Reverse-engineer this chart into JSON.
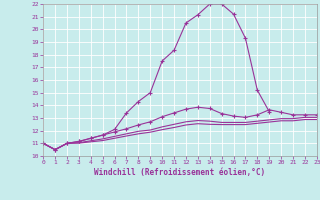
{
  "background_color": "#c8ecec",
  "grid_color": "#ffffff",
  "line_color": "#993399",
  "xlabel": "Windchill (Refroidissement éolien,°C)",
  "xmin": 0,
  "xmax": 23,
  "ymin": 10,
  "ymax": 22,
  "yticks": [
    10,
    11,
    12,
    13,
    14,
    15,
    16,
    17,
    18,
    19,
    20,
    21,
    22
  ],
  "xticks": [
    0,
    1,
    2,
    3,
    4,
    5,
    6,
    7,
    8,
    9,
    10,
    11,
    12,
    13,
    14,
    15,
    16,
    17,
    18,
    19,
    20,
    21,
    22,
    23
  ],
  "curves": [
    {
      "x": [
        0,
        1,
        2,
        3,
        4,
        5,
        6,
        7,
        8,
        9,
        10,
        11,
        12,
        13,
        14,
        15,
        16,
        17,
        18,
        19
      ],
      "y": [
        11.0,
        10.5,
        11.0,
        11.15,
        11.4,
        11.65,
        12.1,
        13.4,
        14.3,
        15.0,
        17.5,
        18.35,
        20.5,
        21.15,
        22.0,
        22.0,
        21.2,
        19.3,
        15.2,
        13.5
      ],
      "marker": true
    },
    {
      "x": [
        0,
        1,
        2,
        3,
        4,
        5,
        6,
        7,
        8,
        9,
        10,
        11,
        12,
        13,
        14,
        15,
        16,
        17,
        18,
        19,
        20,
        21,
        22,
        23
      ],
      "y": [
        11.0,
        10.5,
        11.0,
        11.15,
        11.4,
        11.65,
        11.9,
        12.15,
        12.45,
        12.7,
        13.1,
        13.4,
        13.7,
        13.85,
        13.75,
        13.35,
        13.15,
        13.05,
        13.25,
        13.65,
        13.45,
        13.25,
        13.25,
        13.25
      ],
      "marker": true
    },
    {
      "x": [
        0,
        1,
        2,
        3,
        4,
        5,
        6,
        7,
        8,
        9,
        10,
        11,
        12,
        13,
        14,
        15,
        16,
        17,
        18,
        19,
        20,
        21,
        22,
        23
      ],
      "y": [
        11.0,
        10.5,
        11.0,
        11.05,
        11.2,
        11.35,
        11.55,
        11.75,
        11.95,
        12.05,
        12.3,
        12.5,
        12.7,
        12.8,
        12.75,
        12.65,
        12.65,
        12.65,
        12.75,
        12.85,
        12.95,
        12.95,
        13.05,
        13.05
      ],
      "marker": false
    },
    {
      "x": [
        0,
        1,
        2,
        3,
        4,
        5,
        6,
        7,
        8,
        9,
        10,
        11,
        12,
        13,
        14,
        15,
        16,
        17,
        18,
        19,
        20,
        21,
        22,
        23
      ],
      "y": [
        11.0,
        10.5,
        11.0,
        11.02,
        11.12,
        11.22,
        11.4,
        11.58,
        11.75,
        11.88,
        12.08,
        12.25,
        12.45,
        12.55,
        12.5,
        12.48,
        12.48,
        12.48,
        12.58,
        12.68,
        12.78,
        12.78,
        12.88,
        12.88
      ],
      "marker": false
    }
  ]
}
